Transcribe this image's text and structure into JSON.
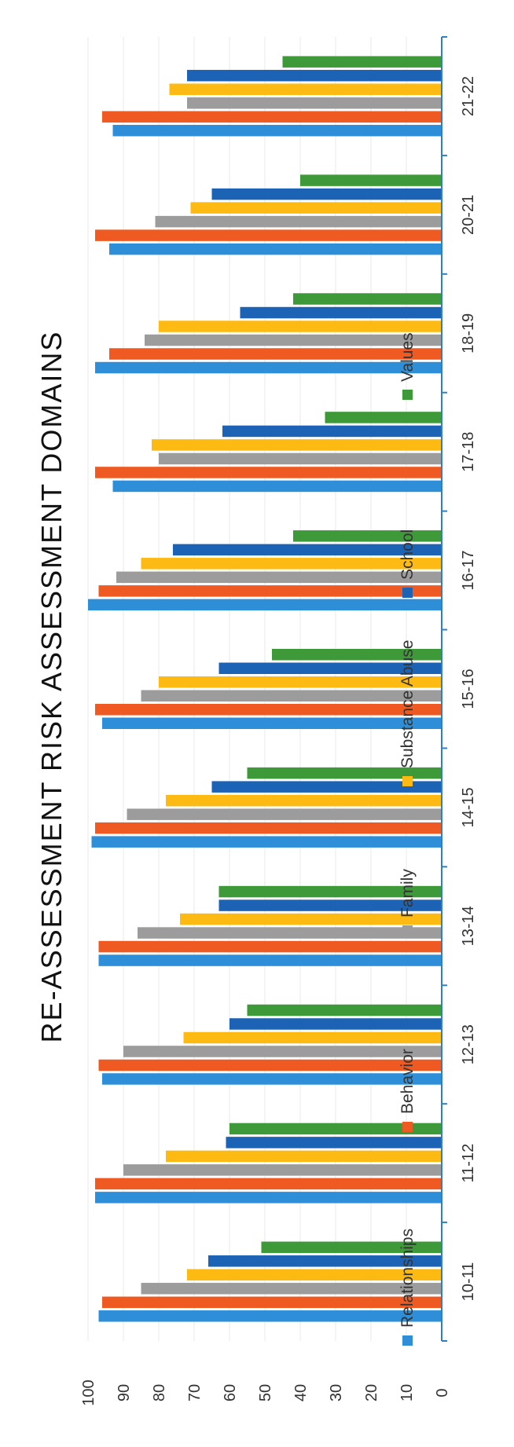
{
  "chart_data": {
    "type": "bar",
    "orientation": "horizontal",
    "rotated": "90deg-clockwise",
    "title": "RE-ASSESSMENT RISK ASSESSMENT DOMAINS",
    "categories": [
      "10-11",
      "11-12",
      "12-13",
      "13-14",
      "14-15",
      "15-16",
      "16-17",
      "17-18",
      "18-19",
      "20-21",
      "21-22"
    ],
    "ylim": [
      0,
      100
    ],
    "ticks": [
      "0",
      "10",
      "20",
      "30",
      "40",
      "50",
      "60",
      "70",
      "80",
      "90",
      "100"
    ],
    "grid": true,
    "legend_position": "bottom",
    "series": [
      {
        "name": "Relationships",
        "color": "#2E8FD8",
        "values": [
          97,
          98,
          96,
          97,
          99,
          96,
          100,
          93,
          98,
          94,
          93
        ]
      },
      {
        "name": "Behavior",
        "color": "#EE5A22",
        "values": [
          96,
          98,
          97,
          97,
          98,
          98,
          97,
          98,
          94,
          98,
          96
        ]
      },
      {
        "name": "Family",
        "color": "#9C9C9C",
        "values": [
          85,
          90,
          90,
          86,
          89,
          85,
          92,
          80,
          84,
          81,
          72
        ]
      },
      {
        "name": "Substance Abuse",
        "color": "#FDBA12",
        "values": [
          72,
          78,
          73,
          74,
          78,
          80,
          85,
          82,
          80,
          71,
          77
        ]
      },
      {
        "name": "School",
        "color": "#1C63B5",
        "values": [
          66,
          61,
          60,
          63,
          65,
          63,
          76,
          62,
          57,
          65,
          72
        ]
      },
      {
        "name": "Values",
        "color": "#3E9A38",
        "values": [
          51,
          60,
          55,
          63,
          55,
          48,
          42,
          33,
          42,
          40,
          45
        ]
      }
    ]
  }
}
